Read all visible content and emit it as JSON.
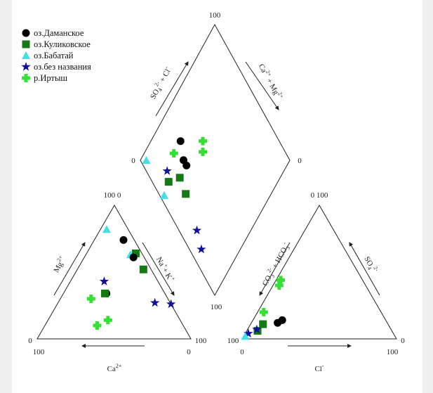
{
  "chart_data": {
    "type": "scatter",
    "subtype": "piper-diagram",
    "legend_placement": "top-left",
    "series": [
      {
        "id": "daman",
        "name": "оз.Даманское",
        "marker": "circle",
        "color": "#000000"
      },
      {
        "id": "kulik",
        "name": "оз.Куликовское",
        "marker": "square",
        "color": "#157a15"
      },
      {
        "id": "babat",
        "name": "оз.Бабатай",
        "marker": "triangle",
        "color": "#3fe0e6"
      },
      {
        "id": "noname",
        "name": "оз.без названия",
        "marker": "star",
        "color": "#10109c"
      },
      {
        "id": "irtysh",
        "name": "р.Иртыш",
        "marker": "plus",
        "color": "#33e033"
      }
    ],
    "cation_triangle": {
      "axis_labels": {
        "mg": "Mg",
        "mg_sup": "2+",
        "na": "Na",
        "na_sup": "+",
        "plus": "+ K",
        "k_sup": "+",
        "ca": "Ca",
        "ca_sup": "2+"
      },
      "ticks": {
        "top": "100 0",
        "left_a": "0",
        "left_b": "100",
        "right_a": "100",
        "right_b": "0"
      },
      "points_mg_na_percent": [
        {
          "s": "babat",
          "mg": 82,
          "na": 4
        },
        {
          "s": "daman",
          "mg": 74,
          "na": 19
        },
        {
          "s": "kulik",
          "mg": 64,
          "na": 32
        },
        {
          "s": "babat",
          "mg": 63,
          "na": 29
        },
        {
          "s": "daman",
          "mg": 61,
          "na": 32
        },
        {
          "s": "kulik",
          "mg": 52,
          "na": 43
        },
        {
          "s": "noname",
          "mg": 43,
          "na": 22
        },
        {
          "s": "daman",
          "mg": 34,
          "na": 28
        },
        {
          "s": "kulik",
          "mg": 34,
          "na": 27
        },
        {
          "s": "irtysh",
          "mg": 30,
          "na": 20
        },
        {
          "s": "irtysh",
          "mg": 14,
          "na": 39
        },
        {
          "s": "irtysh",
          "mg": 10,
          "na": 34
        },
        {
          "s": "noname",
          "mg": 27,
          "na": 63
        },
        {
          "s": "noname",
          "mg": 26,
          "na": 74
        }
      ]
    },
    "anion_triangle": {
      "axis_labels": {
        "co3": "CO",
        "co3_sub": "3",
        "co3_sup": "2-",
        "hco3": " + HCO",
        "hco3_sub": "3",
        "hco3_sup": "-",
        "so4": "SO",
        "so4_sub": "4",
        "so4_sup": "2-",
        "cl": "Cl",
        "cl_sup": "-"
      },
      "ticks": {
        "top": "0 100",
        "left_a": "100",
        "left_b": "0",
        "right_a": "0",
        "right_b": "100"
      },
      "points_so4_cl_percent": [
        {
          "s": "irtysh",
          "so4": 44,
          "cl": 3
        },
        {
          "s": "irtysh",
          "so4": 40,
          "cl": 4
        },
        {
          "s": "irtysh",
          "so4": 20,
          "cl": 4
        },
        {
          "s": "daman",
          "so4": 14,
          "cl": 19
        },
        {
          "s": "daman",
          "so4": 12,
          "cl": 17
        },
        {
          "s": "kulik",
          "so4": 11,
          "cl": 8
        },
        {
          "s": "kulik",
          "so4": 6,
          "cl": 7
        },
        {
          "s": "noname",
          "so4": 7,
          "cl": 6
        },
        {
          "s": "noname",
          "so4": 4,
          "cl": 2
        },
        {
          "s": "babat",
          "so4": 2,
          "cl": 1
        }
      ]
    },
    "diamond": {
      "axis_labels": {
        "so4": "SO",
        "so4_sub": "4",
        "so4_sup": "2-",
        "cl": " + Cl",
        "cl_sup": "-",
        "ca": "Ca",
        "ca_sup": "2+",
        "mg": " + Mg",
        "mg_sup": "2+"
      },
      "ticks": {
        "top": "100",
        "left": "0",
        "right": "0",
        "bottom": "100"
      },
      "points_so4cl_nak_percent": [
        {
          "s": "daman",
          "a": 34,
          "b": 20
        },
        {
          "s": "irtysh",
          "a": 49,
          "b": 35
        },
        {
          "s": "irtysh",
          "a": 45,
          "b": 39
        },
        {
          "s": "irtysh",
          "a": 25,
          "b": 20
        },
        {
          "s": "daman",
          "a": 29,
          "b": 29
        },
        {
          "s": "daman",
          "a": 29,
          "b": 33
        },
        {
          "s": "babat",
          "a": 4,
          "b": 4
        },
        {
          "s": "noname",
          "a": 14,
          "b": 22
        },
        {
          "s": "kulik",
          "a": 11,
          "b": 27
        },
        {
          "s": "kulik",
          "a": 20,
          "b": 33
        },
        {
          "s": "kulik",
          "a": 18,
          "b": 43
        },
        {
          "s": "babat",
          "a": 3,
          "b": 29
        },
        {
          "s": "noname",
          "a": 12,
          "b": 64
        },
        {
          "s": "noname",
          "a": 8,
          "b": 74
        }
      ]
    }
  }
}
